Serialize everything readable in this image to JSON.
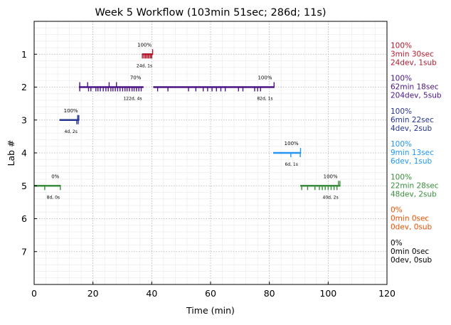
{
  "chart_data": {
    "type": "timeline",
    "title": "Week 5 Workflow (103min 51sec; 286d; 11s)",
    "xlabel": "Time (min)",
    "ylabel": "Lab #",
    "xlim": [
      0,
      120
    ],
    "ylim": [
      8,
      0
    ],
    "x_ticks": [
      0,
      20,
      40,
      60,
      80,
      100,
      120
    ],
    "y_ticks": [
      1,
      2,
      3,
      4,
      5,
      6,
      7
    ],
    "grid": true,
    "minor_grid": true,
    "labs": [
      {
        "lab": 1,
        "color": "#b2182b",
        "segments": [
          {
            "start": 36.8,
            "end": 40.3,
            "ticks": [
              36.8,
              37.3,
              37.8,
              38.2,
              38.7,
              39.1,
              39.6,
              40.0
            ],
            "sub_ticks": [
              40.3
            ],
            "percent_label": "100%",
            "percent_x": 37.5,
            "count_label": "24d, 1s",
            "count_x": 37.5
          }
        ],
        "summary": {
          "percent": "100%",
          "time": "3min 30sec",
          "counts": "24dev, 1sub"
        }
      },
      {
        "lab": 2,
        "color": "#4a1486",
        "segments": [
          {
            "start": 15.2,
            "end": 37.2,
            "ticks": [
              15.5,
              18.5,
              19.3,
              21.0,
              21.7,
              22.5,
              23.5,
              24.4,
              25.2,
              26.1,
              26.8,
              27.6,
              28.4,
              29.2,
              30.1,
              30.9,
              31.6,
              32.4,
              33.3,
              34.0,
              34.8,
              35.6,
              36.4
            ],
            "sub_ticks": [
              15.5,
              18.2,
              25.5,
              28.0
            ],
            "percent_label": "70%",
            "percent_x": 34.5,
            "count_label": "122d, 4s",
            "count_x": 33.5
          },
          {
            "start": 40.5,
            "end": 81.7,
            "ticks": [
              42.0,
              45.5,
              52.5,
              55.0,
              57.5,
              59.0,
              60.5,
              62.0,
              63.5,
              65.0,
              69.5,
              71.0,
              75.0,
              76.0,
              77.0
            ],
            "sub_ticks": [
              81.6
            ],
            "percent_label": "100%",
            "percent_x": 78.5,
            "count_label": "82d, 1s",
            "count_x": 78.5
          }
        ],
        "summary": {
          "percent": "100%",
          "time": "62min 18sec",
          "counts": "204dev, 5sub"
        }
      },
      {
        "lab": 3,
        "color": "#253494",
        "segments": [
          {
            "start": 8.6,
            "end": 15.2,
            "ticks": [
              14.5,
              15.0
            ],
            "sub_ticks": [
              14.8,
              15.2
            ],
            "percent_label": "100%",
            "percent_x": 12.5,
            "count_label": "4d, 2s",
            "count_x": 12.5
          }
        ],
        "summary": {
          "percent": "100%",
          "time": "6min 22sec",
          "counts": "4dev, 2sub"
        }
      },
      {
        "lab": 4,
        "color": "#2196f3",
        "segments": [
          {
            "start": 81.3,
            "end": 90.6,
            "ticks": [
              87.3,
              90.5
            ],
            "sub_ticks": [
              90.6
            ],
            "percent_label": "100%",
            "percent_x": 87.5,
            "count_label": "6d, 1s",
            "count_x": 87.5
          }
        ],
        "summary": {
          "percent": "100%",
          "time": "9min 13sec",
          "counts": "6dev, 1sub"
        }
      },
      {
        "lab": 5,
        "color": "#388e3c",
        "segments": [
          {
            "start": 0.0,
            "end": 9.1,
            "ticks": [
              3.6,
              8.9
            ],
            "sub_ticks": [],
            "percent_label": "0%",
            "percent_x": 7.2,
            "count_label": "8d, 0s",
            "count_x": 6.5
          },
          {
            "start": 90.5,
            "end": 104.0,
            "ticks": [
              91.0,
              93.0,
              95.5,
              97.0,
              98.0,
              99.0,
              100.0,
              101.0,
              102.0,
              103.0
            ],
            "sub_ticks": [
              103.5,
              104.0
            ],
            "percent_label": "100%",
            "percent_x": 100.8,
            "count_label": "40d, 2s",
            "count_x": 100.8
          }
        ],
        "summary": {
          "percent": "100%",
          "time": "22min 28sec",
          "counts": "48dev, 2sub"
        }
      },
      {
        "lab": 6,
        "color": "#e65100",
        "segments": [],
        "summary": {
          "percent": "0%",
          "time": "0min 0sec",
          "counts": "0dev, 0sub"
        }
      },
      {
        "lab": 7,
        "color": "#000000",
        "segments": [],
        "summary": {
          "percent": "0%",
          "time": "0min 0sec",
          "counts": "0dev, 0sub"
        }
      }
    ]
  },
  "colors": {
    "axis": "#000000",
    "grid": "#b0b0b0",
    "minor_grid": "#ececec",
    "background": "#ffffff"
  }
}
